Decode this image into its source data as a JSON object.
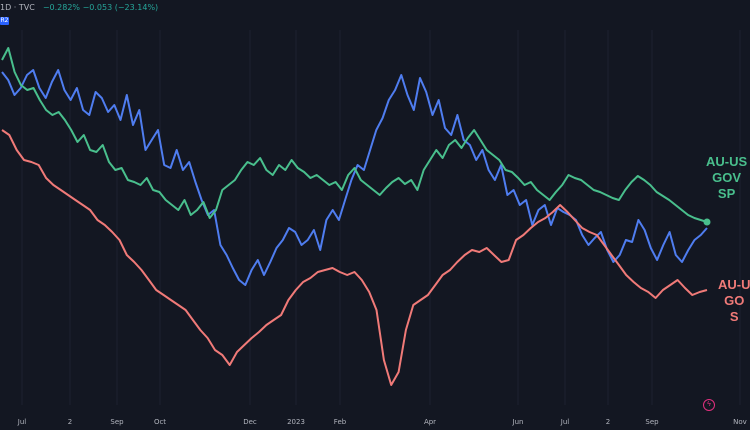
{
  "header": {
    "title": "1D · TVC",
    "change": "−0.282%  −0.053 (−23.14%)",
    "badge": "R2"
  },
  "colors": {
    "background": "#131722",
    "blue": "#4f7df0",
    "green": "#49bf8d",
    "red": "#f07a78",
    "axis_text": "#b2b5be"
  },
  "series_labels": {
    "green": [
      "AU-US",
      "GOV",
      "SP"
    ],
    "red": [
      "AU-U",
      "GO",
      "S"
    ]
  },
  "chart_data": {
    "type": "line",
    "x_tick_labels": [
      "Jul",
      "2",
      "Sep",
      "Oct",
      "Dec",
      "2023",
      "Feb",
      "Apr",
      "Jun",
      "Jul",
      "2",
      "Sep",
      "Nov"
    ],
    "series": [
      {
        "color": "#4f7df0",
        "values": [
          72,
          80,
          95,
          88,
          75,
          70,
          88,
          98,
          82,
          70,
          90,
          100,
          88,
          110,
          115,
          92,
          98,
          112,
          105,
          120,
          95,
          125,
          110,
          150,
          140,
          130,
          165,
          168,
          150,
          170,
          162,
          182,
          200,
          215,
          210,
          245,
          255,
          268,
          280,
          285,
          270,
          260,
          275,
          262,
          248,
          240,
          228,
          232,
          245,
          240,
          230,
          250,
          220,
          210,
          220,
          200,
          180,
          165,
          170,
          150,
          130,
          118,
          100,
          90,
          75,
          95,
          110,
          78,
          92,
          115,
          100,
          128,
          135,
          115,
          140,
          145,
          160,
          150,
          170,
          180,
          165,
          195,
          190,
          205,
          200,
          225,
          210,
          205,
          225,
          208,
          212,
          215,
          220,
          235,
          245,
          238,
          232,
          250,
          262,
          255,
          240,
          242,
          220,
          230,
          248,
          260,
          245,
          232,
          255,
          262,
          250,
          240,
          235,
          228
        ]
      },
      {
        "color": "#49bf8d",
        "values": [
          60,
          48,
          72,
          85,
          90,
          88,
          100,
          110,
          115,
          112,
          120,
          130,
          142,
          135,
          150,
          152,
          145,
          162,
          170,
          168,
          180,
          182,
          185,
          178,
          190,
          192,
          200,
          205,
          210,
          200,
          215,
          210,
          202,
          218,
          210,
          190,
          185,
          180,
          170,
          162,
          165,
          158,
          170,
          175,
          165,
          170,
          160,
          168,
          172,
          178,
          175,
          180,
          185,
          182,
          190,
          175,
          168,
          180,
          185,
          190,
          195,
          188,
          182,
          178,
          184,
          180,
          190,
          170,
          160,
          150,
          158,
          145,
          140,
          148,
          138,
          130,
          140,
          150,
          155,
          160,
          170,
          172,
          178,
          185,
          182,
          190,
          195,
          200,
          192,
          185,
          175,
          178,
          180,
          185,
          190,
          192,
          195,
          198,
          200,
          190,
          182,
          176,
          180,
          185,
          192,
          196,
          200,
          205,
          210,
          215,
          218,
          220,
          222
        ]
      },
      {
        "color": "#f07a78",
        "values": [
          130,
          135,
          150,
          160,
          162,
          165,
          178,
          185,
          190,
          195,
          200,
          205,
          210,
          220,
          225,
          232,
          240,
          255,
          262,
          270,
          280,
          290,
          295,
          300,
          305,
          310,
          320,
          330,
          338,
          350,
          355,
          365,
          352,
          345,
          338,
          332,
          325,
          320,
          315,
          300,
          290,
          282,
          278,
          272,
          270,
          268,
          272,
          275,
          272,
          280,
          292,
          310,
          360,
          385,
          372,
          330,
          305,
          300,
          295,
          285,
          275,
          270,
          262,
          255,
          250,
          252,
          248,
          255,
          262,
          260,
          240,
          235,
          228,
          222,
          218,
          212,
          205,
          212,
          220,
          228,
          232,
          235,
          245,
          255,
          265,
          275,
          282,
          288,
          292,
          298,
          290,
          285,
          280,
          288,
          295,
          292,
          290
        ]
      }
    ]
  }
}
